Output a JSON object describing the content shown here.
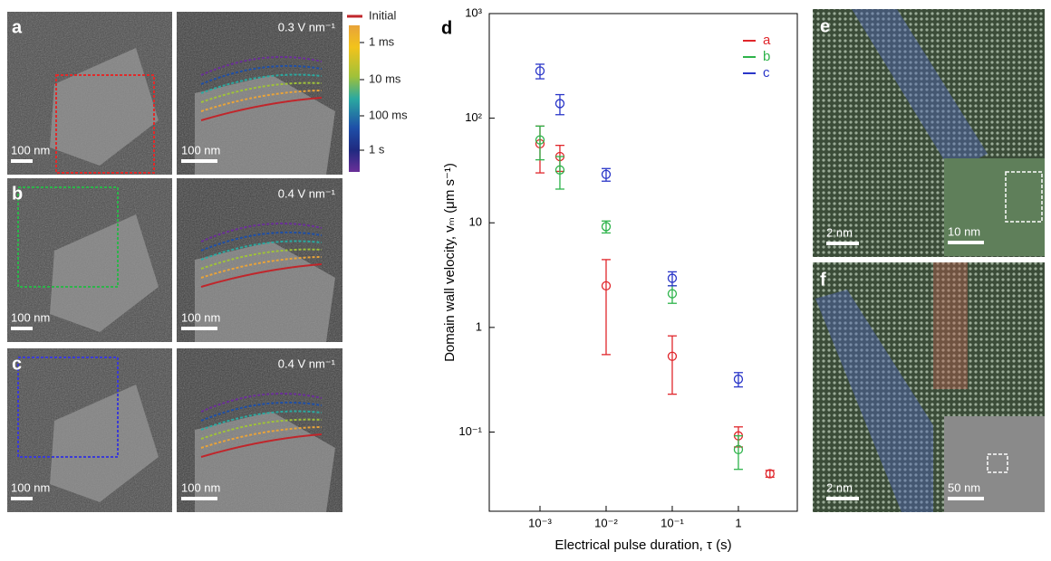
{
  "chart_data": {
    "type": "scatter",
    "panel_label": "d",
    "y_label": "Domain wall velocity, vₘ (μm s⁻¹)",
    "x_label": "Electrical pulse duration, τ (s)",
    "log_x": true,
    "log_y": true,
    "xlim": [
      0.000171,
      7.78
    ],
    "ylim": [
      0.0175,
      1000
    ],
    "xticks": [
      {
        "value": 0.001,
        "label": "10⁻³"
      },
      {
        "value": 0.01,
        "label": "10⁻²"
      },
      {
        "value": 0.1,
        "label": "10⁻¹"
      },
      1
    ],
    "yticks": [
      {
        "value": 0.1,
        "label": "10⁻¹"
      },
      1,
      10,
      {
        "value": 100,
        "label": "10²"
      },
      {
        "value": 1000,
        "label": "10³"
      }
    ],
    "legend": "upper right",
    "series": [
      {
        "name": "a",
        "color": "#e0262b",
        "x": [
          0.001,
          0.002,
          0.01,
          0.1,
          1,
          3
        ],
        "values": [
          57,
          43,
          2.5,
          0.53,
          0.092,
          0.04
        ],
        "errors": [
          27,
          12,
          1.95,
          0.3,
          0.02,
          0.003
        ]
      },
      {
        "name": "b",
        "color": "#2db34a",
        "x": [
          0.001,
          0.002,
          0.01,
          0.1,
          1
        ],
        "values": [
          62,
          32,
          9.2,
          2.1,
          0.068
        ],
        "errors": [
          22,
          11,
          1.2,
          0.4,
          0.024
        ]
      },
      {
        "name": "c",
        "color": "#2a36c8",
        "x": [
          0.001,
          0.002,
          0.01,
          0.1,
          1
        ],
        "values": [
          283,
          138,
          29,
          2.95,
          0.32
        ],
        "errors": [
          45,
          30,
          4,
          0.45,
          0.05
        ]
      }
    ]
  },
  "images": {
    "left": [
      {
        "label": "a",
        "scale_bar": "100 nm"
      },
      {
        "label": "b",
        "scale_bar": "100 nm"
      },
      {
        "label": "c",
        "scale_bar": "100 nm"
      }
    ],
    "middle": [
      {
        "field": "0.3 V nm⁻¹",
        "scale_bar": "100 nm"
      },
      {
        "field": "0.4 V nm⁻¹",
        "scale_bar": "100 nm"
      },
      {
        "field": "0.4 V nm⁻¹",
        "scale_bar": "100 nm"
      }
    ],
    "colorbar": [
      "Initial",
      "1 ms",
      "10 ms",
      "100 ms",
      "1 s"
    ],
    "right": [
      {
        "label": "e",
        "scale_bar": "2 nm",
        "inset_scale_bar": "10 nm"
      },
      {
        "label": "f",
        "scale_bar": "2 nm",
        "inset_scale_bar": "50 nm"
      }
    ]
  }
}
